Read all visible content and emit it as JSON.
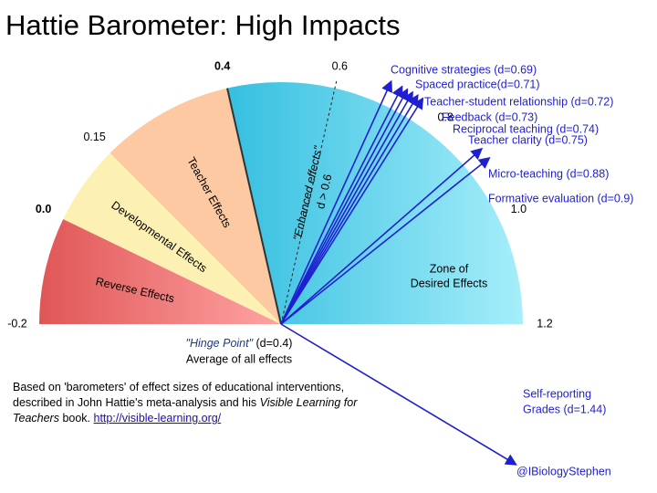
{
  "title": "Hattie Barometer: High Impacts",
  "scale": {
    "min": -0.2,
    "max": 1.2,
    "ticks": [
      {
        "value": -0.2,
        "label": "-0.2"
      },
      {
        "value": 0,
        "label": "0.0",
        "bold": true
      },
      {
        "value": 0.15,
        "label": "0.15"
      },
      {
        "value": 0.4,
        "label": "0.4",
        "bold": true
      },
      {
        "value": 0.6,
        "label": "0.6"
      },
      {
        "value": 0.8,
        "label": "0.8"
      },
      {
        "value": 1,
        "label": "1.0"
      },
      {
        "value": 1.2,
        "label": "1.2"
      }
    ]
  },
  "zones": [
    {
      "label": "Reverse Effects",
      "from": -0.2,
      "to": 0,
      "colors": [
        "#e05656",
        "#ffa3a3"
      ]
    },
    {
      "label": "Developmental  Effects",
      "from": 0,
      "to": 0.15,
      "colors": [
        "#fdf0b3",
        "#fdf0b3"
      ]
    },
    {
      "label": "Teacher  Effects",
      "from": 0.15,
      "to": 0.4,
      "colors": [
        "#fcc9a2",
        "#fcc9a2"
      ]
    },
    {
      "label": "Zone of",
      "label2": "Desired Effects",
      "from": 0.4,
      "to": 1.2,
      "colors": [
        "#35bfe0",
        "#a6eefa"
      ]
    }
  ],
  "enhanced": {
    "value": 0.6,
    "label": "\"Enhanced effects\"",
    "label2": "d > 0.6"
  },
  "hinge": {
    "value": 0.4,
    "label": "\"Hinge Point\"",
    "label_rest": " (d=0.4)",
    "label2": "Average of all effects"
  },
  "influences": [
    {
      "label": "Cognitive strategies (d=0.69)",
      "d": 0.69
    },
    {
      "label": "Spaced practice(d=0.71)",
      "d": 0.71
    },
    {
      "label": "Teacher-student relationship (d=0.72)",
      "d": 0.72
    },
    {
      "label": "Feedback (d=0.73)",
      "d": 0.73
    },
    {
      "label": "Reciprocal teaching (d=0.74)",
      "d": 0.74
    },
    {
      "label": "Teacher clarity (d=0.75)",
      "d": 0.75
    },
    {
      "label": "Micro-teaching (d=0.88)",
      "d": 0.88
    },
    {
      "label": "Formative evaluation (d=0.9)",
      "d": 0.9
    },
    {
      "label": "Self-reporting",
      "label2": "Grades (d=1.44)",
      "d": 1.44
    }
  ],
  "note": {
    "line1": "Based on 'barometers' of effect sizes of educational interventions,",
    "line2a": "described in John Hattie's meta-analysis and his ",
    "line2b": "Visible Learning for",
    "line3a": "Teachers",
    "line3b": " book. ",
    "link": "http://visible-learning.org/"
  },
  "credit": "@IBiologyStephen"
}
